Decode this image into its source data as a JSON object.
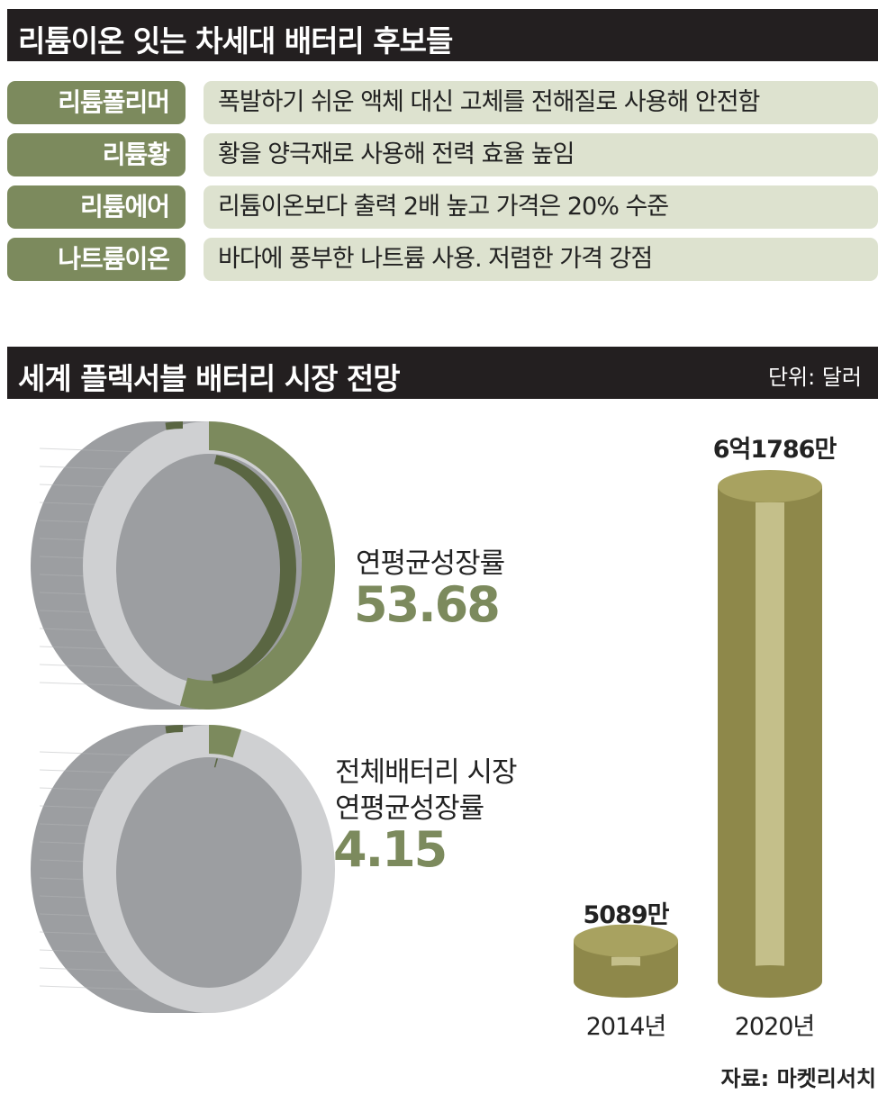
{
  "section1": {
    "title": "리튬이온 잇는 차세대 배터리 후보들",
    "rows": [
      {
        "label": "리튬폴리머",
        "desc": "폭발하기 쉬운 액체 대신 고체를 전해질로 사용해 안전함"
      },
      {
        "label": "리튬황",
        "desc": "황을 양극재로 사용해 전력 효율 높임"
      },
      {
        "label": "리튬에어",
        "desc": "리튬이온보다 출력 2배 높고 가격은 20% 수준"
      },
      {
        "label": "나트륨이온",
        "desc": "바다에 풍부한 나트륨 사용. 저렴한 가격 강점"
      }
    ]
  },
  "section2": {
    "title": "세계 플렉서블 배터리 시장 전망",
    "unit": "단위: 달러"
  },
  "chart_data": [
    {
      "type": "pie",
      "title": "연평균성장률",
      "value": 53.68,
      "display": "53.68"
    },
    {
      "type": "pie",
      "title": "전체배터리  시장\n연평균성장률",
      "title_lines": [
        "전체배터리  시장",
        "연평균성장률"
      ],
      "value": 4.15,
      "display": "4.15"
    },
    {
      "type": "bar",
      "categories": [
        "2014년",
        "2020년"
      ],
      "values": [
        50890000,
        617860000
      ],
      "value_labels": [
        "5089만",
        "6억1786만"
      ]
    }
  ],
  "source": "자료: 마켓리서치",
  "colors": {
    "accent": "#7c8a5d",
    "accent_dark": "#5a6642",
    "ring_light": "#cfd0d2",
    "ring_side": "#9c9ea1",
    "bar_gold": "#a8a260"
  }
}
